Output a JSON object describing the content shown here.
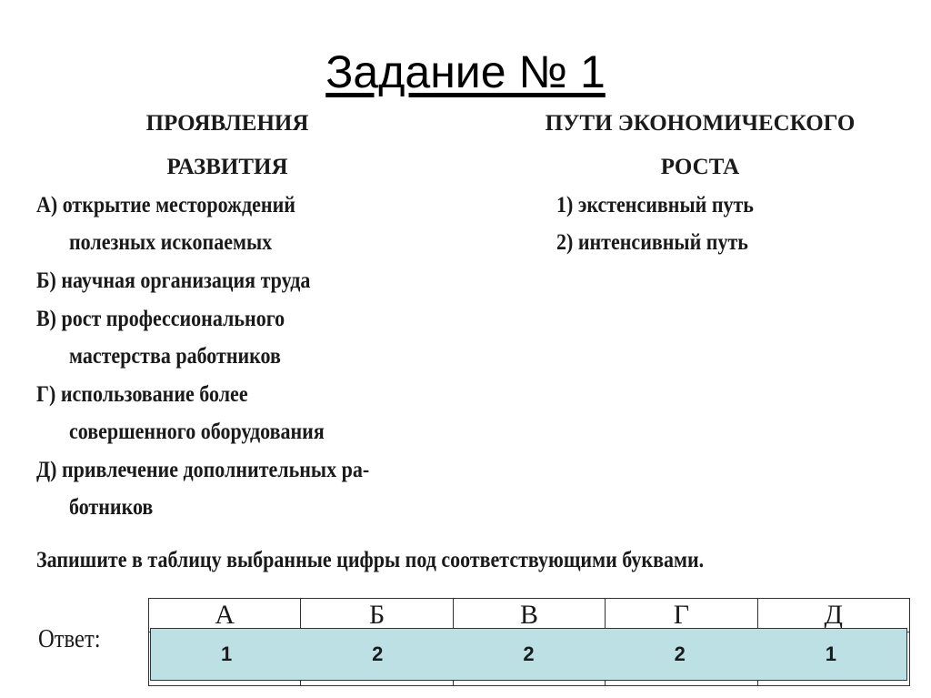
{
  "title": "Задание № 1",
  "left_header": [
    "ПРОЯВЛЕНИЯ",
    "РАЗВИТИЯ"
  ],
  "right_header": [
    "ПУТИ ЭКОНОМИЧЕСКОГО",
    "РОСТА"
  ],
  "left_lines": [
    "А) открытие месторождений",
    "полезных ископаемых",
    "Б) научная организация труда",
    "В) рост профессионального",
    "мастерства работников",
    "Г) использование более",
    "совершенного оборудования",
    "Д) привлечение  дополнительных  ра-",
    "ботников"
  ],
  "right_lines": [
    "1) экстенсивный путь",
    "2) интенсивный путь"
  ],
  "instruction": "Запишите в таблицу выбранные цифры под соответствующими буквами.",
  "answer_label": "Ответ:",
  "table_letters": [
    "А",
    "Б",
    "В",
    "Г",
    "Д"
  ],
  "answers": [
    "1",
    "2",
    "2",
    "2",
    "1"
  ],
  "colors": {
    "answer_fill": "#bce0e4"
  }
}
